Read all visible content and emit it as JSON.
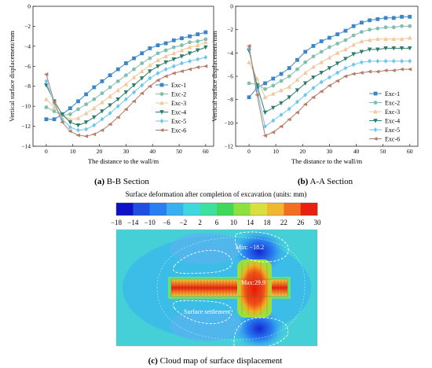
{
  "charts": {
    "chart_data": [
      {
        "type": "line",
        "caption_letter": "(a)",
        "caption_text": " B-B Section",
        "xlabel": "The distance to the wall/m",
        "ylabel": "Vertical surface displacement/mm",
        "xlim": [
          -5,
          63
        ],
        "ylim": [
          -14,
          0
        ],
        "xticks": [
          0,
          10,
          20,
          30,
          40,
          50,
          60
        ],
        "yticks": [
          0,
          -2,
          -4,
          -6,
          -8,
          -10,
          -12,
          -14
        ],
        "grid": false,
        "legend_position": "middle-right",
        "x": [
          0,
          3,
          6,
          9,
          12,
          15,
          18,
          21,
          24,
          27,
          30,
          33,
          36,
          39,
          42,
          45,
          48,
          51,
          54,
          57,
          60
        ],
        "series": [
          {
            "name": "Exc-1",
            "color": "#3a86c8",
            "marker": "square",
            "values": [
              -11.3,
              -11.3,
              -10.8,
              -10.2,
              -9.5,
              -8.8,
              -8.1,
              -7.5,
              -6.9,
              -6.3,
              -5.7,
              -5.2,
              -4.7,
              -4.2,
              -3.9,
              -3.7,
              -3.4,
              -3.2,
              -3.0,
              -2.8,
              -2.6
            ]
          },
          {
            "name": "Exc-2",
            "color": "#7fbfae",
            "marker": "circle",
            "values": [
              -10.1,
              -10.5,
              -10.9,
              -10.8,
              -10.3,
              -9.8,
              -9.3,
              -8.7,
              -8.1,
              -7.5,
              -6.9,
              -6.3,
              -5.7,
              -5.2,
              -4.7,
              -4.4,
              -4.1,
              -3.9,
              -3.6,
              -3.5,
              -3.3
            ]
          },
          {
            "name": "Exc-3",
            "color": "#f1c79b",
            "marker": "triangle-up",
            "values": [
              -9.3,
              -10.1,
              -10.9,
              -11.3,
              -11.2,
              -10.7,
              -10.2,
              -9.6,
              -9.0,
              -8.4,
              -7.8,
              -7.1,
              -6.5,
              -5.9,
              -5.4,
              -5.0,
              -4.7,
              -4.4,
              -4.1,
              -3.9,
              -3.6
            ]
          },
          {
            "name": "Exc-4",
            "color": "#2e7d69",
            "marker": "triangle-down",
            "values": [
              -7.9,
              -9.5,
              -10.8,
              -11.6,
              -11.9,
              -11.6,
              -11.1,
              -10.5,
              -9.9,
              -9.3,
              -8.6,
              -7.9,
              -7.2,
              -6.5,
              -6.0,
              -5.6,
              -5.3,
              -5.0,
              -4.7,
              -4.4,
              -4.1
            ]
          },
          {
            "name": "Exc-5",
            "color": "#6ec6f0",
            "marker": "diamond",
            "values": [
              -7.5,
              -9.7,
              -11.3,
              -12.1,
              -12.4,
              -12.3,
              -11.9,
              -11.3,
              -10.7,
              -10.0,
              -9.3,
              -8.6,
              -7.9,
              -7.2,
              -6.7,
              -6.3,
              -6.0,
              -5.7,
              -5.5,
              -5.3,
              -5.1
            ]
          },
          {
            "name": "Exc-6",
            "color": "#b57b67",
            "marker": "triangle-left",
            "values": [
              -6.8,
              -9.6,
              -11.6,
              -12.5,
              -12.9,
              -13.0,
              -12.8,
              -12.4,
              -11.8,
              -11.1,
              -10.3,
              -9.5,
              -8.7,
              -8.0,
              -7.4,
              -7.0,
              -6.7,
              -6.5,
              -6.3,
              -6.1,
              -6.0
            ]
          }
        ]
      },
      {
        "type": "line",
        "caption_letter": "(b)",
        "caption_text": " A-A Section",
        "xlabel": "The distance to the wall/m",
        "ylabel": "Vertical surface displacement/mm",
        "xlim": [
          -5,
          63
        ],
        "ylim": [
          -12,
          0
        ],
        "xticks": [
          0,
          10,
          20,
          30,
          40,
          50,
          60
        ],
        "yticks": [
          0,
          -2,
          -4,
          -6,
          -8,
          -10,
          -12
        ],
        "grid": false,
        "legend_position": "bottom-right",
        "x": [
          0,
          3,
          6,
          9,
          12,
          15,
          18,
          21,
          24,
          27,
          30,
          33,
          36,
          39,
          42,
          45,
          48,
          51,
          54,
          57,
          60
        ],
        "series": [
          {
            "name": "Exc-1",
            "color": "#3a86c8",
            "marker": "square",
            "values": [
              -7.8,
              -7.0,
              -6.6,
              -6.2,
              -5.8,
              -5.3,
              -4.6,
              -3.9,
              -3.4,
              -3.0,
              -2.7,
              -2.4,
              -2.1,
              -1.7,
              -1.4,
              -1.2,
              -1.1,
              -1.0,
              -1.0,
              -0.9,
              -0.9
            ]
          },
          {
            "name": "Exc-2",
            "color": "#7fbfae",
            "marker": "circle",
            "values": [
              -6.6,
              -6.7,
              -7.1,
              -6.8,
              -6.4,
              -6.0,
              -5.4,
              -4.8,
              -4.3,
              -3.9,
              -3.5,
              -3.2,
              -2.9,
              -2.5,
              -2.2,
              -2.0,
              -1.9,
              -1.8,
              -1.8,
              -1.7,
              -1.7
            ]
          },
          {
            "name": "Exc-3",
            "color": "#f1c79b",
            "marker": "triangle-up",
            "values": [
              -4.8,
              -6.2,
              -7.8,
              -7.5,
              -7.2,
              -6.9,
              -6.3,
              -5.7,
              -5.2,
              -4.8,
              -4.4,
              -4.0,
              -3.7,
              -3.3,
              -3.0,
              -2.9,
              -2.8,
              -2.8,
              -2.8,
              -2.8,
              -2.7
            ]
          },
          {
            "name": "Exc-4",
            "color": "#2e7d69",
            "marker": "triangle-down",
            "values": [
              -3.8,
              -6.8,
              -9.1,
              -8.7,
              -8.3,
              -7.8,
              -7.2,
              -6.6,
              -6.1,
              -5.7,
              -5.3,
              -4.9,
              -4.5,
              -4.1,
              -3.9,
              -3.7,
              -3.7,
              -3.6,
              -3.6,
              -3.6,
              -3.6
            ]
          },
          {
            "name": "Exc-5",
            "color": "#6ec6f0",
            "marker": "diamond",
            "values": [
              -3.6,
              -7.2,
              -10.3,
              -9.8,
              -9.3,
              -8.8,
              -8.2,
              -7.6,
              -7.0,
              -6.5,
              -6.1,
              -5.7,
              -5.3,
              -5.0,
              -4.8,
              -4.7,
              -4.7,
              -4.7,
              -4.7,
              -4.7,
              -4.7
            ]
          },
          {
            "name": "Exc-6",
            "color": "#b57b67",
            "marker": "triangle-left",
            "values": [
              -3.4,
              -7.6,
              -11.1,
              -10.8,
              -10.3,
              -9.7,
              -9.1,
              -8.4,
              -7.8,
              -7.3,
              -6.8,
              -6.4,
              -6.0,
              -5.8,
              -5.7,
              -5.6,
              -5.6,
              -5.5,
              -5.5,
              -5.4,
              -5.4
            ]
          }
        ]
      },
      {
        "type": "heatmap",
        "caption_letter": "(c)",
        "caption_text": " Cloud map of surface displacement",
        "title": "Surface deformation after completion of excavation  (units: mm)",
        "colorbar_ticks": [
          "−18",
          "−14",
          "−10",
          "−6",
          "−2",
          "2",
          "6",
          "10",
          "14",
          "18",
          "22",
          "26",
          "30"
        ],
        "colorbar_colors": [
          "#1010c8",
          "#2050e0",
          "#2a7ff0",
          "#38b0f0",
          "#40d8e0",
          "#3ee0a0",
          "#40d858",
          "#8ce040",
          "#d8e040",
          "#f0b830",
          "#f07020",
          "#e82010"
        ],
        "min_label": "Min: −18.2",
        "max_label": "Max:29.9",
        "annotation": "Surface settlement"
      }
    ]
  }
}
